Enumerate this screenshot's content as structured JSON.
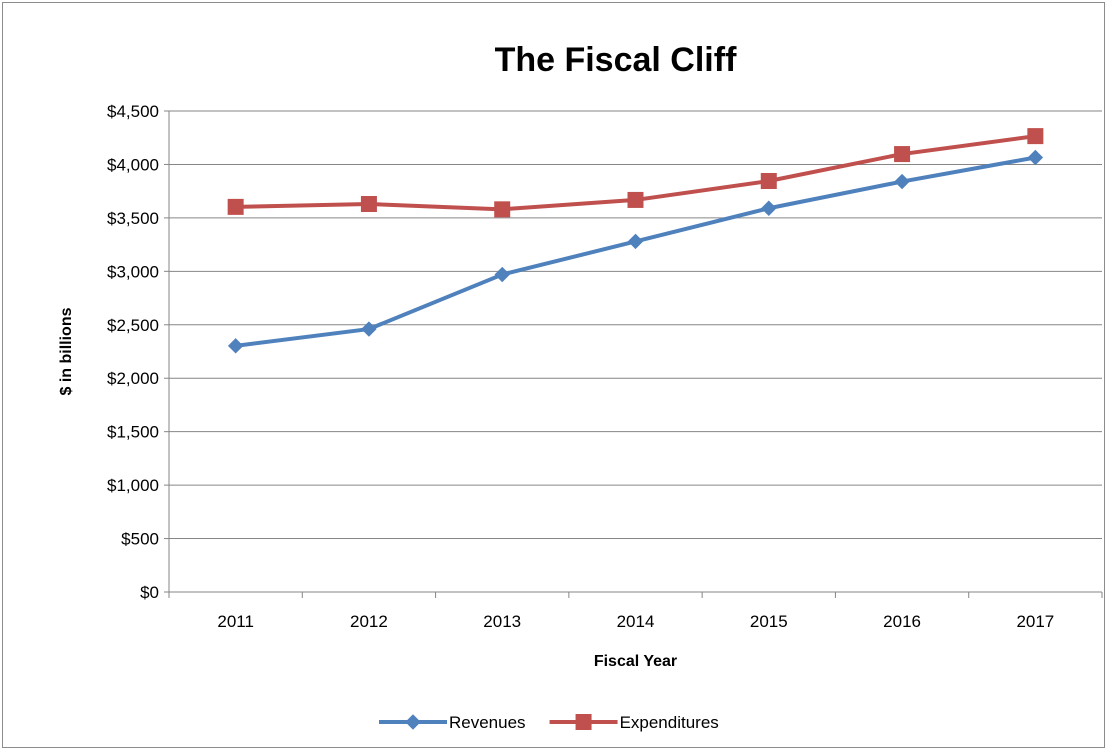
{
  "chart_data": {
    "type": "line",
    "title": "The Fiscal Cliff",
    "xlabel": "Fiscal Year",
    "ylabel": "$ in billions",
    "categories": [
      "2011",
      "2012",
      "2013",
      "2014",
      "2015",
      "2016",
      "2017"
    ],
    "ylim": [
      0,
      4500
    ],
    "ytick_step": 500,
    "ytick_labels": [
      "$0",
      "$500",
      "$1,000",
      "$1,500",
      "$2,000",
      "$2,500",
      "$3,000",
      "$3,500",
      "$4,000",
      "$4,500"
    ],
    "grid": "horizontal",
    "legend_position": "bottom",
    "series": [
      {
        "name": "Revenues",
        "color": "#4f81bd",
        "marker": "diamond",
        "values": [
          2303,
          2460,
          2970,
          3280,
          3590,
          3840,
          4065
        ]
      },
      {
        "name": "Expenditures",
        "color": "#c0504d",
        "marker": "square",
        "values": [
          3603,
          3630,
          3580,
          3668,
          3845,
          4097,
          4265
        ]
      }
    ]
  }
}
